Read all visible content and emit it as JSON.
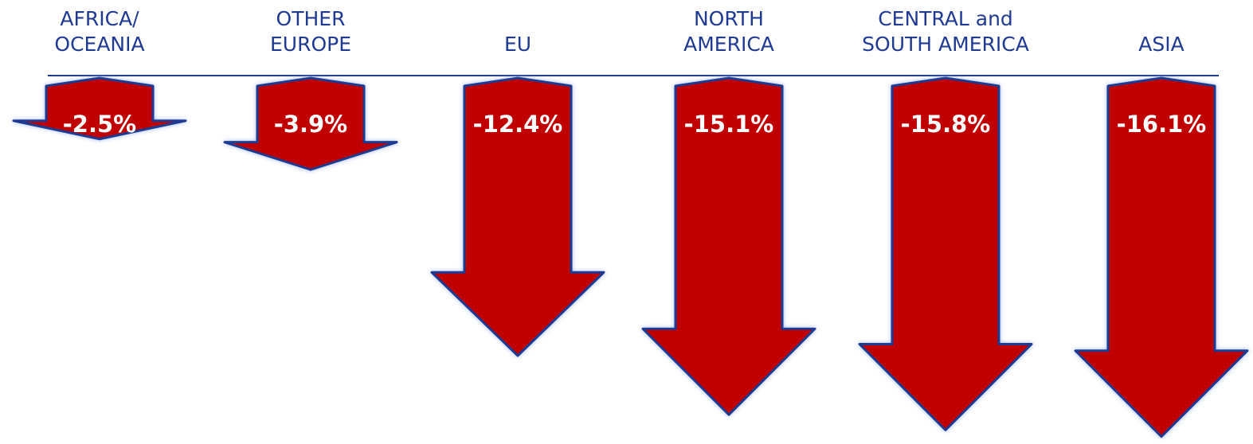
{
  "chart_data": {
    "type": "arrow-bar",
    "categories": [
      "AFRICA/\nOCEANIA",
      "OTHER\nEUROPE",
      "EU",
      "NORTH\nAMERICA",
      "CENTRAL and\nSOUTH AMERICA",
      "ASIA"
    ],
    "values": [
      -2.5,
      -3.9,
      -12.4,
      -15.1,
      -15.8,
      -16.1
    ],
    "value_labels": [
      "-2.5%",
      "-3.9%",
      "-12.4%",
      "-15.1%",
      "-15.8%",
      "-16.1%"
    ],
    "color": "#c00000"
  }
}
